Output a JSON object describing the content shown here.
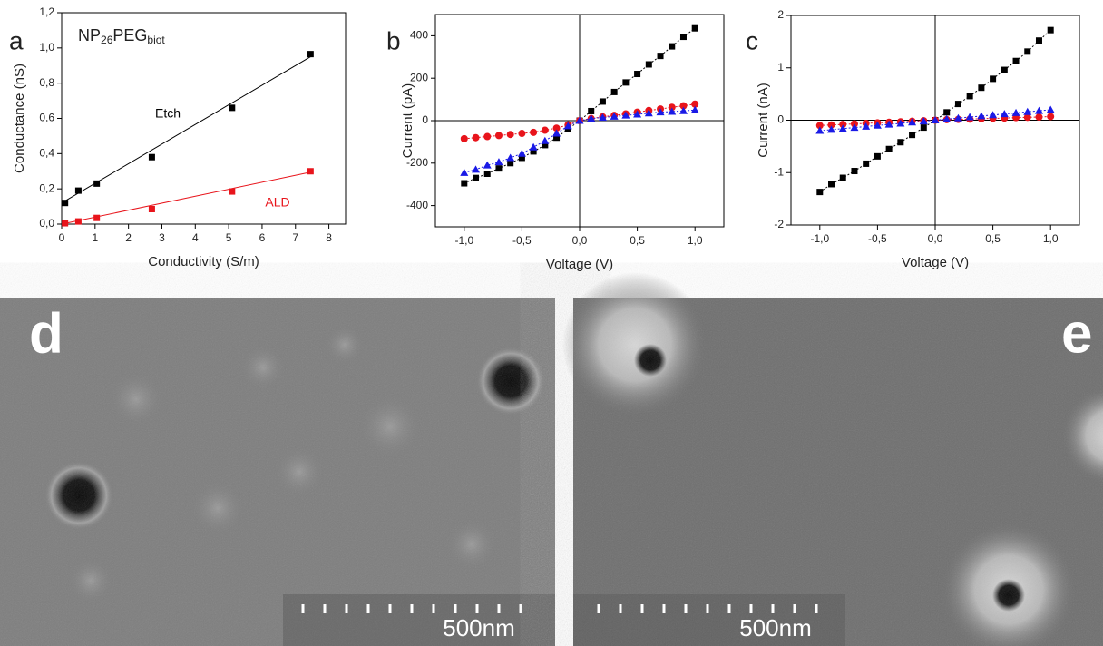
{
  "chart_data": [
    {
      "type": "scatter",
      "panel": "a",
      "title": [
        "NP",
        "26",
        "PEG",
        "biot"
      ],
      "x_label": "Conductivity (S/m)",
      "y_label": "Conductance (nS)",
      "xlim": [
        0,
        8.5
      ],
      "xticks": [
        0,
        1,
        2,
        3,
        4,
        5,
        6,
        7,
        8
      ],
      "ylim": [
        0,
        1.2
      ],
      "yticks": [
        {
          "value": 0,
          "label": "0,0"
        },
        {
          "value": 0.2,
          "label": "0,2"
        },
        {
          "value": 0.4,
          "label": "0,4"
        },
        {
          "value": 0.6,
          "label": "0,6"
        },
        {
          "value": 0.8,
          "label": "0,8"
        },
        {
          "value": 1.0,
          "label": "1,0"
        },
        {
          "value": 1.2,
          "label": "1,2"
        }
      ],
      "origin_lines": false,
      "series": [
        {
          "name": "Etch",
          "color": "#000000",
          "marker": "square",
          "line": false,
          "x": [
            0.1,
            0.5,
            1.05,
            2.7,
            5.1,
            7.45
          ],
          "values": [
            0.12,
            0.19,
            0.23,
            0.38,
            0.66,
            0.965
          ],
          "fit_x": [
            0,
            7.45
          ],
          "fit_values": [
            0.12,
            0.95
          ]
        },
        {
          "name": "ALD",
          "color": "#e8141b",
          "marker": "square",
          "line": false,
          "x": [
            0.1,
            0.5,
            1.05,
            2.7,
            5.1,
            7.45
          ],
          "values": [
            0.005,
            0.015,
            0.035,
            0.085,
            0.185,
            0.3
          ],
          "fit_x": [
            0,
            7.45
          ],
          "fit_values": [
            0,
            0.295
          ]
        }
      ]
    },
    {
      "type": "scatter",
      "panel": "b",
      "x_label": "Voltage (V)",
      "y_label": "Current (pA)",
      "xlim": [
        -1.25,
        1.25
      ],
      "xticks": [
        {
          "value": -1,
          "label": "-1,0"
        },
        {
          "value": -0.5,
          "label": "-0,5"
        },
        {
          "value": 0,
          "label": "0,0"
        },
        {
          "value": 0.5,
          "label": "0,5"
        },
        {
          "value": 1,
          "label": "1,0"
        }
      ],
      "ylim": [
        -500,
        500
      ],
      "yticks": [
        -400,
        -200,
        0,
        200,
        400
      ],
      "origin_lines": true,
      "series": [
        {
          "color": "#000000",
          "marker": "square",
          "line": true,
          "x": [
            -1,
            -0.9,
            -0.8,
            -0.7,
            -0.6,
            -0.5,
            -0.4,
            -0.3,
            -0.2,
            -0.1,
            0,
            0.1,
            0.2,
            0.3,
            0.4,
            0.5,
            0.6,
            0.7,
            0.8,
            0.9,
            1
          ],
          "values": [
            -295,
            -270,
            -250,
            -225,
            -200,
            -175,
            -145,
            -115,
            -80,
            -40,
            0,
            45,
            90,
            135,
            180,
            220,
            265,
            305,
            350,
            395,
            435
          ]
        },
        {
          "color": "#e8141b",
          "marker": "circle",
          "line": true,
          "x": [
            -1,
            -0.9,
            -0.8,
            -0.7,
            -0.6,
            -0.5,
            -0.4,
            -0.3,
            -0.2,
            -0.1,
            0,
            0.1,
            0.2,
            0.3,
            0.4,
            0.5,
            0.6,
            0.7,
            0.8,
            0.9,
            1
          ],
          "values": [
            -85,
            -80,
            -75,
            -70,
            -65,
            -60,
            -55,
            -45,
            -35,
            -20,
            0,
            10,
            18,
            25,
            32,
            40,
            48,
            55,
            63,
            70,
            78
          ]
        },
        {
          "color": "#1a1ae6",
          "marker": "triangle",
          "line": true,
          "x": [
            -1,
            -0.9,
            -0.8,
            -0.7,
            -0.6,
            -0.5,
            -0.4,
            -0.3,
            -0.2,
            -0.1,
            0,
            0.1,
            0.2,
            0.3,
            0.4,
            0.5,
            0.6,
            0.7,
            0.8,
            0.9,
            1
          ],
          "values": [
            -245,
            -230,
            -210,
            -195,
            -175,
            -155,
            -125,
            -95,
            -60,
            -25,
            0,
            10,
            15,
            20,
            25,
            30,
            35,
            40,
            43,
            46,
            50
          ]
        }
      ]
    },
    {
      "type": "scatter",
      "panel": "c",
      "x_label": "Voltage (V)",
      "y_label": "Current (nA)",
      "xlim": [
        -1.25,
        1.25
      ],
      "xticks": [
        {
          "value": -1,
          "label": "-1,0"
        },
        {
          "value": -0.5,
          "label": "-0,5"
        },
        {
          "value": 0,
          "label": "0,0"
        },
        {
          "value": 0.5,
          "label": "0,5"
        },
        {
          "value": 1,
          "label": "1,0"
        }
      ],
      "ylim": [
        -2,
        2
      ],
      "yticks": [
        -2,
        -1,
        0,
        1,
        2
      ],
      "origin_lines": true,
      "series": [
        {
          "color": "#000000",
          "marker": "square",
          "line": true,
          "x": [
            -1,
            -0.9,
            -0.8,
            -0.7,
            -0.6,
            -0.5,
            -0.4,
            -0.3,
            -0.2,
            -0.1,
            0,
            0.1,
            0.2,
            0.3,
            0.4,
            0.5,
            0.6,
            0.7,
            0.8,
            0.9,
            1
          ],
          "values": [
            -1.37,
            -1.22,
            -1.1,
            -0.97,
            -0.83,
            -0.69,
            -0.55,
            -0.42,
            -0.28,
            -0.14,
            0,
            0.15,
            0.31,
            0.46,
            0.62,
            0.79,
            0.96,
            1.13,
            1.31,
            1.52,
            1.72
          ]
        },
        {
          "color": "#e8141b",
          "marker": "circle",
          "line": true,
          "x": [
            -1,
            -0.9,
            -0.8,
            -0.7,
            -0.6,
            -0.5,
            -0.4,
            -0.3,
            -0.2,
            -0.1,
            0,
            0.1,
            0.2,
            0.3,
            0.4,
            0.5,
            0.6,
            0.7,
            0.8,
            0.9,
            1
          ],
          "values": [
            -0.1,
            -0.09,
            -0.08,
            -0.07,
            -0.06,
            -0.05,
            -0.04,
            -0.03,
            -0.02,
            -0.01,
            0,
            0.01,
            0.015,
            0.02,
            0.03,
            0.035,
            0.04,
            0.05,
            0.055,
            0.06,
            0.07
          ]
        },
        {
          "color": "#1a1ae6",
          "marker": "triangle",
          "line": true,
          "x": [
            -1,
            -0.9,
            -0.8,
            -0.7,
            -0.6,
            -0.5,
            -0.4,
            -0.3,
            -0.2,
            -0.1,
            0,
            0.1,
            0.2,
            0.3,
            0.4,
            0.5,
            0.6,
            0.7,
            0.8,
            0.9,
            1
          ],
          "values": [
            -0.2,
            -0.18,
            -0.16,
            -0.14,
            -0.12,
            -0.1,
            -0.08,
            -0.06,
            -0.04,
            -0.02,
            0,
            0.02,
            0.04,
            0.06,
            0.08,
            0.1,
            0.12,
            0.14,
            0.16,
            0.18,
            0.2
          ]
        }
      ]
    }
  ],
  "images": [
    {
      "label": "d",
      "scale_bar": "500nm"
    },
    {
      "label": "e",
      "scale_bar": "500nm"
    }
  ]
}
